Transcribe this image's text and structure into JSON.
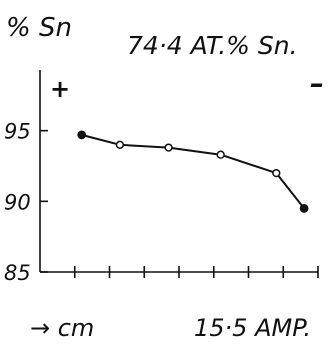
{
  "chart_data": {
    "type": "line",
    "title": "74·4 AT.% Sn.",
    "ylabel": "% Sn",
    "xlabel": "→ cm",
    "annotation": "15·5 AMP.",
    "sign_left": "+",
    "sign_right": "–",
    "ylim": [
      85,
      100
    ],
    "yticks": [
      85,
      90,
      95
    ],
    "ytick_labels": [
      "85",
      "90",
      "95"
    ],
    "xlim": [
      0,
      8
    ],
    "xticks": [
      1,
      2,
      3,
      4,
      5,
      6,
      7,
      8
    ],
    "x": [
      1.2,
      2.3,
      3.7,
      5.2,
      6.8,
      7.6
    ],
    "y": [
      94.7,
      94.0,
      93.8,
      93.3,
      92.0,
      89.5
    ],
    "marker_styles": [
      "solid",
      "open",
      "open",
      "open",
      "open",
      "solid"
    ]
  }
}
